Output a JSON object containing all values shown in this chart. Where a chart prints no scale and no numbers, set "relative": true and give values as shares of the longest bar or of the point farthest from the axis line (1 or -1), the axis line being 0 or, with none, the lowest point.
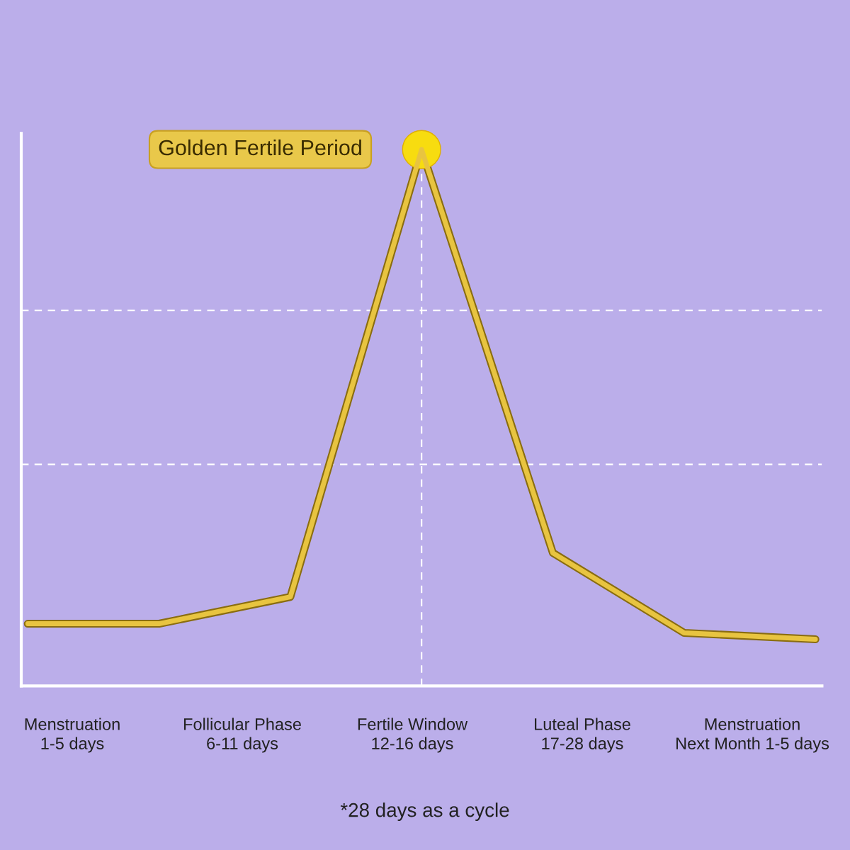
{
  "chart_data": {
    "type": "line",
    "relative": true,
    "categories": [
      null,
      null,
      null,
      null,
      null,
      null,
      null
    ],
    "series": [
      {
        "color": "#e8c440",
        "values": [
          0.116,
          0.116,
          0.166,
          1.0,
          0.248,
          0.099,
          0.087
        ]
      }
    ],
    "ref_lines": [
      {
        "axis": "y",
        "value": 0.7,
        "color": "#ffffff",
        "line_style": "dashed"
      },
      {
        "axis": "y",
        "value": 0.413,
        "color": "#ffffff",
        "line_style": "dashed"
      }
    ],
    "annotations": [
      "Golden Fertile Period",
      "Menstruation\n1-5 days",
      "Follicular Phase\n6-11 days",
      "Fertile Window\n12-16 days",
      "Luteal Phase\n17-28 days",
      "Menstruation\nNext Month 1-5 days",
      "*28 days as a cycle"
    ]
  }
}
